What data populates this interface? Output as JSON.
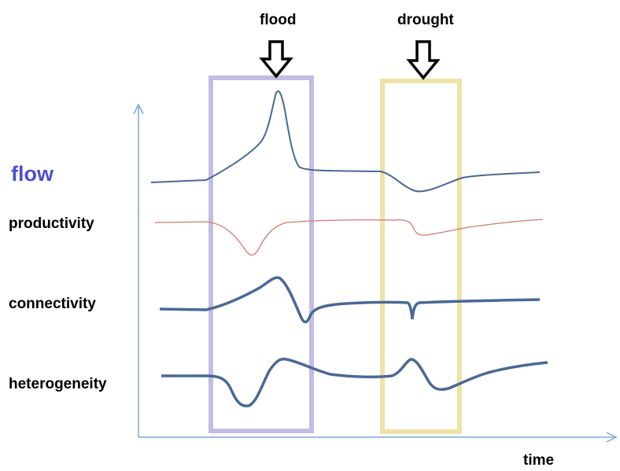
{
  "colors": {
    "axis": "#7fa6d8",
    "flood_box": "#c3bde4",
    "drought_box": "#ede3a9",
    "curve_main": "#4a6896",
    "curve_productivity": "#d07a72",
    "flow_label": "#4f4fcf",
    "text": "#000000"
  },
  "events": {
    "flood": "flood",
    "drought": "drought"
  },
  "rows": {
    "flow": "flow",
    "productivity": "productivity",
    "connectivity": "connectivity",
    "heterogeneity": "heterogeneity"
  },
  "axis": {
    "x_label": "time"
  },
  "icons": {
    "event_marker": "down-arrow-icon"
  }
}
